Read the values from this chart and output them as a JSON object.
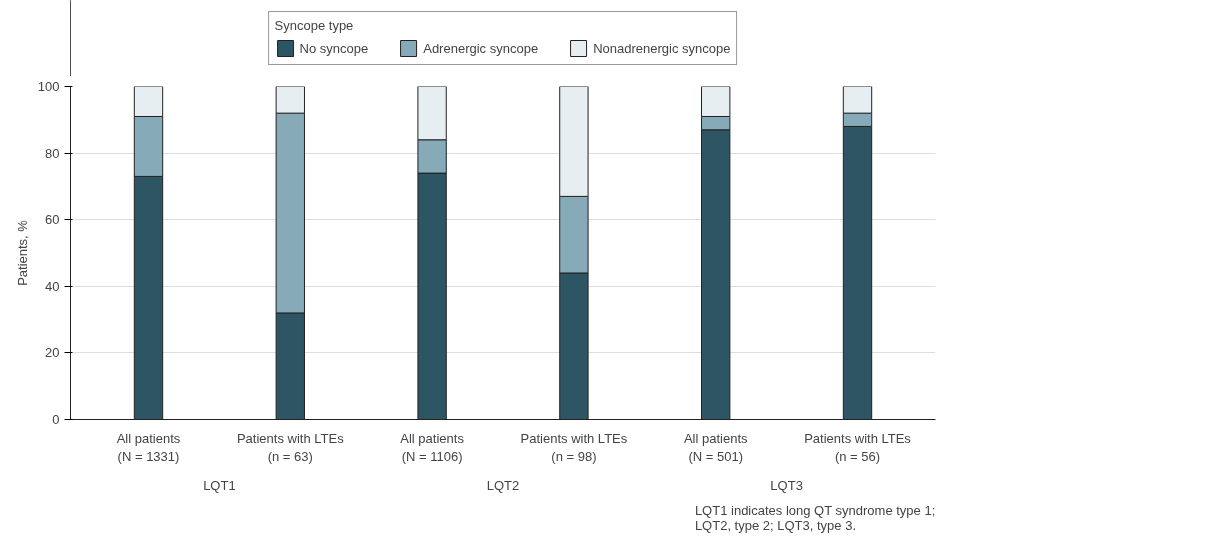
{
  "chart_data": {
    "type": "bar",
    "stacked": true,
    "ylabel": "Patients, %",
    "legend_title": "Syncope type",
    "legend": "top",
    "categories": [
      "All patients\n(N = 1331)",
      "Patients with LTEs\n(n = 63)",
      "All patients\n(N = 1106)",
      "Patients with LTEs\n(n = 98)",
      "All patients\n(N = 501)",
      "Patients with LTEs\n(n = 56)"
    ],
    "series": [
      {
        "name": "No syncope",
        "color": "#2e5564",
        "values": [
          73,
          32,
          74,
          44,
          87,
          88
        ]
      },
      {
        "name": "Adrenergic syncope",
        "color": "#86aab8",
        "values": [
          18,
          60,
          10,
          23,
          4,
          4
        ]
      },
      {
        "name": "Nonadrenergic syncope",
        "color": "#e6eef1",
        "values": [
          9,
          8,
          16,
          33,
          9,
          8
        ]
      }
    ],
    "ylim": [
      0,
      100
    ],
    "yticks": [
      0,
      20,
      40,
      60,
      80,
      100
    ],
    "grid": "y",
    "annotations": [
      "LQT1",
      "LQT2",
      "LQT3",
      "LQT1 indicates long QT syndrome type 1; LQT2, type 2; LQT3, type 3."
    ]
  }
}
